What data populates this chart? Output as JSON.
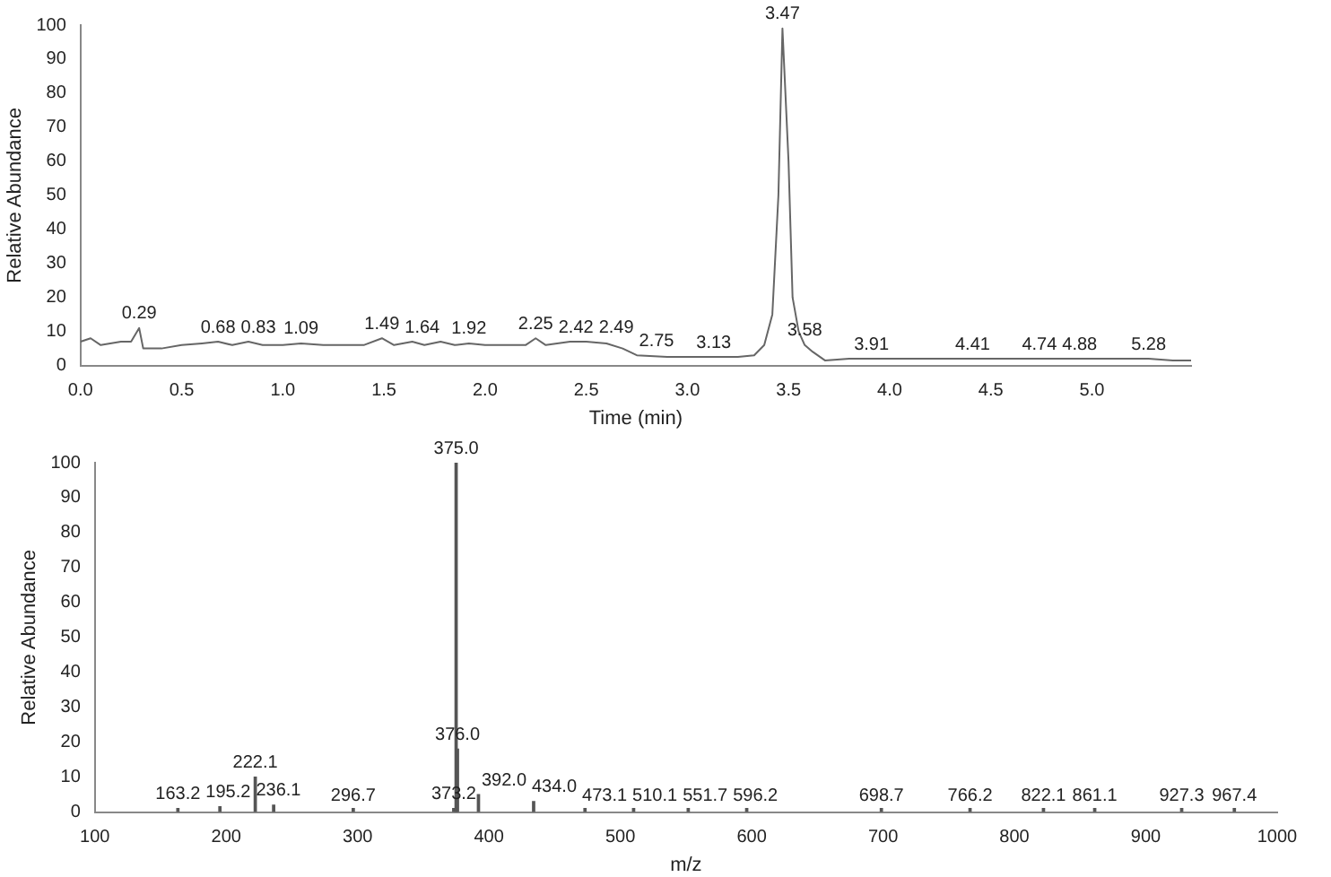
{
  "chart_data": [
    {
      "type": "line",
      "xlabel": "Time (min)",
      "ylabel": "Relative Abundance",
      "xlim": [
        0,
        5.49
      ],
      "ylim": [
        0,
        100
      ],
      "xticks": [
        {
          "value": 0,
          "label": "0.0"
        },
        {
          "value": 0.5,
          "label": "0.5"
        },
        {
          "value": 1,
          "label": "1.0"
        },
        {
          "value": 1.5,
          "label": "1.5"
        },
        {
          "value": 2,
          "label": "2.0"
        },
        {
          "value": 2.5,
          "label": "2.5"
        },
        {
          "value": 3,
          "label": "3.0"
        },
        {
          "value": 3.5,
          "label": "3.5"
        },
        {
          "value": 4,
          "label": "4.0"
        },
        {
          "value": 4.5,
          "label": "4.5"
        },
        {
          "value": 5,
          "label": "5.0"
        }
      ],
      "yticks": [
        0,
        10,
        20,
        30,
        40,
        50,
        60,
        70,
        80,
        90,
        100
      ],
      "grid": false,
      "legend": false,
      "marker": "none",
      "line_style": "solid",
      "series": [
        {
          "color": "#666666",
          "x": [
            0,
            0.05,
            0.1,
            0.2,
            0.25,
            0.29,
            0.31,
            0.4,
            0.5,
            0.6,
            0.68,
            0.75,
            0.83,
            0.9,
            1.0,
            1.09,
            1.2,
            1.3,
            1.4,
            1.49,
            1.55,
            1.64,
            1.7,
            1.78,
            1.85,
            1.92,
            2.0,
            2.1,
            2.2,
            2.25,
            2.3,
            2.42,
            2.5,
            2.6,
            2.68,
            2.75,
            2.9,
            3.0,
            3.13,
            3.25,
            3.33,
            3.38,
            3.42,
            3.45,
            3.47,
            3.5,
            3.52,
            3.55,
            3.58,
            3.62,
            3.68,
            3.8,
            3.91,
            4.0,
            4.2,
            4.41,
            4.6,
            4.74,
            4.88,
            5.0,
            5.28,
            5.4,
            5.49
          ],
          "values": [
            7,
            8,
            6,
            7,
            7,
            11,
            5,
            5,
            6,
            6.5,
            7,
            6,
            7,
            6,
            6,
            6.5,
            6,
            6,
            6,
            8,
            6,
            7,
            6,
            7,
            6,
            6.5,
            6,
            6,
            6,
            8,
            6,
            7,
            7,
            6.5,
            5,
            3,
            2.5,
            2.5,
            2.5,
            2.5,
            3,
            6,
            15,
            50,
            99,
            60,
            20,
            10,
            6,
            4,
            1.5,
            2,
            2,
            2,
            2,
            2,
            2,
            2,
            2,
            2,
            2,
            1.5,
            1.5
          ]
        }
      ],
      "annotations": [
        {
          "text": "0.29",
          "x": 0.29,
          "y": 11
        },
        {
          "text": "0.68",
          "x": 0.68,
          "y": 7
        },
        {
          "text": "0.83",
          "x": 0.83,
          "y": 7
        },
        {
          "text": "1.09",
          "x": 1.09,
          "y": 6.5
        },
        {
          "text": "1.49",
          "x": 1.49,
          "y": 8
        },
        {
          "text": "1.64",
          "x": 1.64,
          "y": 7
        },
        {
          "text": "1.92",
          "x": 1.92,
          "y": 6.5
        },
        {
          "text": "2.25",
          "x": 2.25,
          "y": 8
        },
        {
          "text": "2.42",
          "x": 2.42,
          "y": 7
        },
        {
          "text": "2.49",
          "x": 2.49,
          "y": 7
        },
        {
          "text": "2.75",
          "x": 2.75,
          "y": 3
        },
        {
          "text": "3.13",
          "x": 3.13,
          "y": 2.5
        },
        {
          "text": "3.47",
          "x": 3.47,
          "y": 99
        },
        {
          "text": "3.58",
          "x": 3.58,
          "y": 6
        },
        {
          "text": "3.91",
          "x": 3.91,
          "y": 2
        },
        {
          "text": "4.41",
          "x": 4.41,
          "y": 2
        },
        {
          "text": "4.74",
          "x": 4.74,
          "y": 2
        },
        {
          "text": "4.88",
          "x": 4.88,
          "y": 2
        },
        {
          "text": "5.28",
          "x": 5.28,
          "y": 2
        }
      ]
    },
    {
      "type": "bar",
      "xlabel": "m/z",
      "ylabel": "Relative Abundance",
      "xlim": [
        100,
        1000
      ],
      "ylim": [
        0,
        100
      ],
      "xticks": [
        100,
        200,
        300,
        400,
        500,
        600,
        700,
        800,
        900,
        1000
      ],
      "yticks": [
        0,
        10,
        20,
        30,
        40,
        50,
        60,
        70,
        80,
        90,
        100
      ],
      "grid": false,
      "legend": false,
      "x": [
        163.2,
        195.2,
        222.1,
        236.1,
        296.7,
        373.2,
        375.0,
        376.0,
        392.0,
        434.0,
        473.1,
        510.1,
        551.7,
        596.2,
        698.7,
        766.2,
        822.1,
        861.1,
        927.3,
        967.4
      ],
      "series": [
        {
          "color": "#555555",
          "values": [
            1,
            1.5,
            10,
            2,
            1,
            1,
            100,
            18,
            5,
            3,
            1,
            1,
            1,
            1,
            1,
            1,
            1,
            1,
            1,
            1
          ]
        }
      ],
      "annotations": [
        {
          "text": "163.2",
          "x": 163.2,
          "y": 1
        },
        {
          "text": "195.2",
          "x": 195.2,
          "y": 1.5
        },
        {
          "text": "222.1",
          "x": 222.1,
          "y": 10
        },
        {
          "text": "236.1",
          "x": 236.1,
          "y": 2
        },
        {
          "text": "296.7",
          "x": 296.7,
          "y": 0.5
        },
        {
          "text": "373.2",
          "x": 373.2,
          "y": 1
        },
        {
          "text": "375.0",
          "x": 375.0,
          "y": 100
        },
        {
          "text": "376.0",
          "x": 376.0,
          "y": 18
        },
        {
          "text": "392.0",
          "x": 392.0,
          "y": 5
        },
        {
          "text": "434.0",
          "x": 434.0,
          "y": 3
        },
        {
          "text": "473.1",
          "x": 473.1,
          "y": 0.5
        },
        {
          "text": "510.1",
          "x": 510.1,
          "y": 0.5
        },
        {
          "text": "551.7",
          "x": 551.7,
          "y": 0.5
        },
        {
          "text": "596.2",
          "x": 596.2,
          "y": 0.5
        },
        {
          "text": "698.7",
          "x": 698.7,
          "y": 0.5
        },
        {
          "text": "766.2",
          "x": 766.2,
          "y": 0.5
        },
        {
          "text": "822.1",
          "x": 822.1,
          "y": 0.5
        },
        {
          "text": "861.1",
          "x": 861.1,
          "y": 0.5
        },
        {
          "text": "927.3",
          "x": 927.3,
          "y": 0.5
        },
        {
          "text": "967.4",
          "x": 967.4,
          "y": 0.5
        }
      ]
    }
  ]
}
